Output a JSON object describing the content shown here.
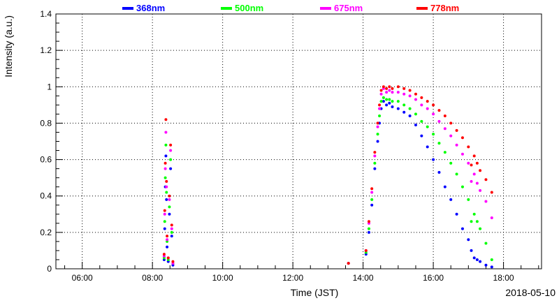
{
  "chart_data": {
    "type": "scatter",
    "title": "",
    "xlabel": "Time (JST)",
    "ylabel": "Intensity (a.u.)",
    "date_label": "2018-05-10",
    "xlim": [
      "05:15",
      "19:05"
    ],
    "ylim": [
      0,
      1.4
    ],
    "x_ticks": [
      "06:00",
      "08:00",
      "10:00",
      "12:00",
      "14:00",
      "16:00",
      "18:00"
    ],
    "y_ticks": [
      "0",
      "0.2",
      "0.4",
      "0.6",
      "0.8",
      "1",
      "1.2",
      "1.4"
    ],
    "grid": true,
    "legend_position": "top",
    "series": [
      {
        "name": "368nm",
        "color": "#0000ff",
        "points": [
          [
            "08:20",
            0.05
          ],
          [
            "08:21",
            0.22
          ],
          [
            "08:22",
            0.45
          ],
          [
            "08:23",
            0.62
          ],
          [
            "08:24",
            0.38
          ],
          [
            "08:25",
            0.12
          ],
          [
            "08:27",
            0.04
          ],
          [
            "08:29",
            0.3
          ],
          [
            "08:31",
            0.55
          ],
          [
            "08:33",
            0.18
          ],
          [
            "08:35",
            0.02
          ],
          [
            "13:35",
            0.03
          ],
          [
            "14:05",
            0.08
          ],
          [
            "14:10",
            0.2
          ],
          [
            "14:15",
            0.35
          ],
          [
            "14:20",
            0.55
          ],
          [
            "14:25",
            0.7
          ],
          [
            "14:28",
            0.8
          ],
          [
            "14:31",
            0.88
          ],
          [
            "14:35",
            0.92
          ],
          [
            "14:40",
            0.9
          ],
          [
            "14:45",
            0.91
          ],
          [
            "14:50",
            0.89
          ],
          [
            "15:00",
            0.88
          ],
          [
            "15:10",
            0.86
          ],
          [
            "15:20",
            0.84
          ],
          [
            "15:30",
            0.79
          ],
          [
            "15:40",
            0.73
          ],
          [
            "15:50",
            0.67
          ],
          [
            "16:00",
            0.6
          ],
          [
            "16:10",
            0.53
          ],
          [
            "16:20",
            0.45
          ],
          [
            "16:30",
            0.38
          ],
          [
            "16:40",
            0.3
          ],
          [
            "16:50",
            0.22
          ],
          [
            "17:00",
            0.16
          ],
          [
            "17:05",
            0.1
          ],
          [
            "17:10",
            0.06
          ],
          [
            "17:15",
            0.05
          ],
          [
            "17:20",
            0.04
          ],
          [
            "17:30",
            0.02
          ],
          [
            "17:40",
            0.01
          ]
        ]
      },
      {
        "name": "500nm",
        "color": "#00ff00",
        "points": [
          [
            "08:20",
            0.06
          ],
          [
            "08:21",
            0.26
          ],
          [
            "08:22",
            0.5
          ],
          [
            "08:23",
            0.68
          ],
          [
            "08:24",
            0.42
          ],
          [
            "08:25",
            0.15
          ],
          [
            "08:27",
            0.05
          ],
          [
            "08:29",
            0.34
          ],
          [
            "08:31",
            0.6
          ],
          [
            "08:33",
            0.2
          ],
          [
            "08:35",
            0.03
          ],
          [
            "13:35",
            0.03
          ],
          [
            "14:05",
            0.09
          ],
          [
            "14:10",
            0.22
          ],
          [
            "14:15",
            0.38
          ],
          [
            "14:20",
            0.58
          ],
          [
            "14:25",
            0.74
          ],
          [
            "14:28",
            0.84
          ],
          [
            "14:31",
            0.92
          ],
          [
            "14:35",
            0.94
          ],
          [
            "14:40",
            0.93
          ],
          [
            "14:45",
            0.93
          ],
          [
            "14:50",
            0.92
          ],
          [
            "15:00",
            0.92
          ],
          [
            "15:10",
            0.9
          ],
          [
            "15:20",
            0.88
          ],
          [
            "15:30",
            0.85
          ],
          [
            "15:40",
            0.81
          ],
          [
            "15:50",
            0.78
          ],
          [
            "16:00",
            0.74
          ],
          [
            "16:10",
            0.69
          ],
          [
            "16:20",
            0.64
          ],
          [
            "16:30",
            0.58
          ],
          [
            "16:40",
            0.52
          ],
          [
            "16:50",
            0.45
          ],
          [
            "17:00",
            0.38
          ],
          [
            "17:05",
            0.26
          ],
          [
            "17:10",
            0.3
          ],
          [
            "17:15",
            0.26
          ],
          [
            "17:20",
            0.22
          ],
          [
            "17:30",
            0.14
          ],
          [
            "17:40",
            0.05
          ]
        ]
      },
      {
        "name": "675nm",
        "color": "#ff00ff",
        "points": [
          [
            "08:20",
            0.07
          ],
          [
            "08:21",
            0.3
          ],
          [
            "08:22",
            0.55
          ],
          [
            "08:23",
            0.75
          ],
          [
            "08:24",
            0.45
          ],
          [
            "08:25",
            0.16
          ],
          [
            "08:27",
            0.06
          ],
          [
            "08:29",
            0.38
          ],
          [
            "08:31",
            0.65
          ],
          [
            "08:33",
            0.22
          ],
          [
            "08:35",
            0.03
          ],
          [
            "13:35",
            0.03
          ],
          [
            "14:05",
            0.1
          ],
          [
            "14:10",
            0.25
          ],
          [
            "14:15",
            0.42
          ],
          [
            "14:20",
            0.62
          ],
          [
            "14:25",
            0.78
          ],
          [
            "14:28",
            0.88
          ],
          [
            "14:31",
            0.96
          ],
          [
            "14:35",
            0.99
          ],
          [
            "14:40",
            0.97
          ],
          [
            "14:45",
            0.98
          ],
          [
            "14:50",
            0.97
          ],
          [
            "15:00",
            0.97
          ],
          [
            "15:10",
            0.96
          ],
          [
            "15:20",
            0.95
          ],
          [
            "15:30",
            0.93
          ],
          [
            "15:40",
            0.9
          ],
          [
            "15:50",
            0.88
          ],
          [
            "16:00",
            0.85
          ],
          [
            "16:10",
            0.81
          ],
          [
            "16:20",
            0.77
          ],
          [
            "16:30",
            0.73
          ],
          [
            "16:40",
            0.68
          ],
          [
            "16:50",
            0.63
          ],
          [
            "17:00",
            0.58
          ],
          [
            "17:05",
            0.48
          ],
          [
            "17:10",
            0.52
          ],
          [
            "17:15",
            0.47
          ],
          [
            "17:20",
            0.43
          ],
          [
            "17:30",
            0.37
          ],
          [
            "17:40",
            0.28
          ]
        ]
      },
      {
        "name": "778nm",
        "color": "#ff0000",
        "points": [
          [
            "08:20",
            0.08
          ],
          [
            "08:21",
            0.32
          ],
          [
            "08:22",
            0.58
          ],
          [
            "08:23",
            0.82
          ],
          [
            "08:24",
            0.48
          ],
          [
            "08:25",
            0.18
          ],
          [
            "08:27",
            0.06
          ],
          [
            "08:29",
            0.4
          ],
          [
            "08:31",
            0.68
          ],
          [
            "08:33",
            0.24
          ],
          [
            "08:35",
            0.04
          ],
          [
            "13:35",
            0.03
          ],
          [
            "14:05",
            0.1
          ],
          [
            "14:10",
            0.26
          ],
          [
            "14:15",
            0.44
          ],
          [
            "14:20",
            0.64
          ],
          [
            "14:25",
            0.8
          ],
          [
            "14:28",
            0.9
          ],
          [
            "14:31",
            0.98
          ],
          [
            "14:35",
            1.0
          ],
          [
            "14:40",
            0.99
          ],
          [
            "14:45",
            1.0
          ],
          [
            "14:50",
            0.99
          ],
          [
            "15:00",
            1.0
          ],
          [
            "15:10",
            0.99
          ],
          [
            "15:20",
            0.98
          ],
          [
            "15:30",
            0.96
          ],
          [
            "15:40",
            0.94
          ],
          [
            "15:50",
            0.92
          ],
          [
            "16:00",
            0.9
          ],
          [
            "16:10",
            0.87
          ],
          [
            "16:20",
            0.84
          ],
          [
            "16:30",
            0.8
          ],
          [
            "16:40",
            0.76
          ],
          [
            "16:50",
            0.72
          ],
          [
            "17:00",
            0.67
          ],
          [
            "17:05",
            0.57
          ],
          [
            "17:10",
            0.62
          ],
          [
            "17:15",
            0.58
          ],
          [
            "17:20",
            0.54
          ],
          [
            "17:30",
            0.49
          ],
          [
            "17:40",
            0.42
          ]
        ]
      }
    ]
  }
}
